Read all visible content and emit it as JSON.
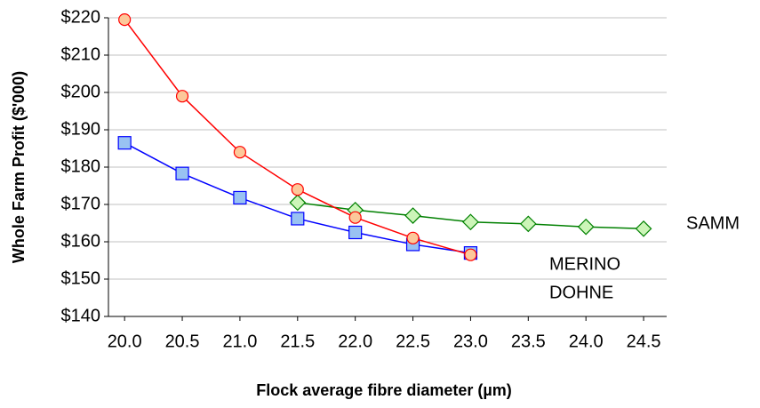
{
  "chart_data": {
    "type": "line",
    "x_label": "Flock average fibre diameter  (µm)",
    "y_label": "Whole Farm Profit ($'000)",
    "xlim": [
      19.86,
      24.7
    ],
    "xticks": [
      {
        "value": 20,
        "label": "20.0"
      },
      {
        "value": 20.5,
        "label": "20.5"
      },
      {
        "value": 21,
        "label": "21.0"
      },
      {
        "value": 21.5,
        "label": "21.5"
      },
      {
        "value": 22,
        "label": "22.0"
      },
      {
        "value": 22.5,
        "label": "22.5"
      },
      {
        "value": 23,
        "label": "23.0"
      },
      {
        "value": 23.5,
        "label": "23.5"
      },
      {
        "value": 24,
        "label": "24.0"
      },
      {
        "value": 24.5,
        "label": "24.5"
      }
    ],
    "ylim": [
      140,
      220
    ],
    "yticks": [
      {
        "value": 140,
        "label": "$140"
      },
      {
        "value": 150,
        "label": "$150"
      },
      {
        "value": 160,
        "label": "$160"
      },
      {
        "value": 170,
        "label": "$170"
      },
      {
        "value": 180,
        "label": "$180"
      },
      {
        "value": 190,
        "label": "$190"
      },
      {
        "value": 200,
        "label": "$200"
      },
      {
        "value": 210,
        "label": "$210"
      },
      {
        "value": 220,
        "label": "$220"
      }
    ],
    "grid": true,
    "series": [
      {
        "name": "MERINO",
        "color": "#ff0000",
        "marker": "circle",
        "marker_color": "#fcc89a",
        "x": [
          20,
          20.5,
          21,
          21.5,
          22,
          22.5,
          23
        ],
        "values": [
          219.5,
          199,
          184,
          174,
          166.5,
          161,
          156.5
        ]
      },
      {
        "name": "DOHNE",
        "color": "#0000ff",
        "marker": "square",
        "marker_color": "#99c2f2",
        "x": [
          20,
          20.5,
          21,
          21.5,
          22,
          22.5,
          23
        ],
        "values": [
          186.5,
          178.3,
          171.8,
          166.2,
          162.5,
          159.3,
          157
        ]
      },
      {
        "name": "SAMM",
        "color": "#008000",
        "marker": "diamond",
        "marker_color": "#ccf5b8",
        "x": [
          21.5,
          22,
          22.5,
          23,
          23.5,
          24,
          24.5
        ],
        "values": [
          170.5,
          168.5,
          167,
          165.3,
          164.8,
          164,
          163.5
        ]
      }
    ]
  }
}
